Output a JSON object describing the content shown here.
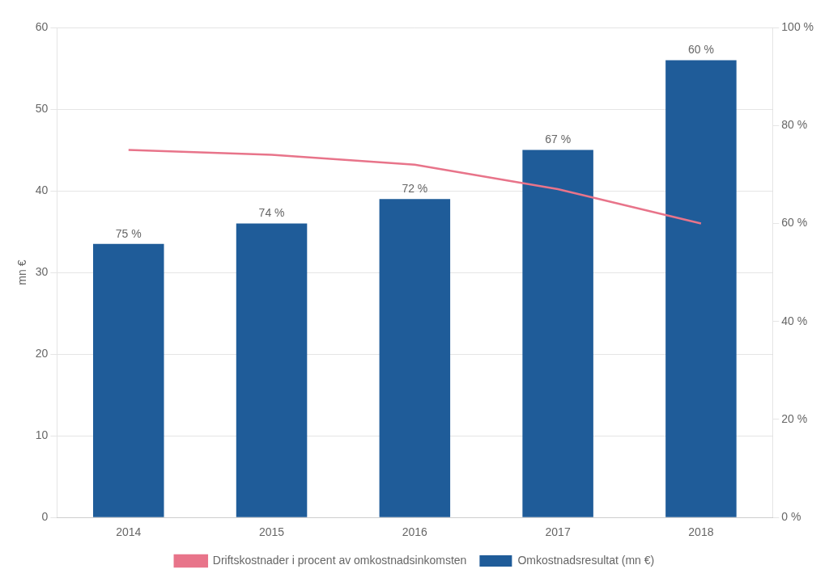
{
  "chart_data": {
    "type": "bar",
    "categories": [
      "2014",
      "2015",
      "2016",
      "2017",
      "2018"
    ],
    "ylabel": "mn €",
    "ylim": [
      0,
      60
    ],
    "yticks": [
      0,
      10,
      20,
      30,
      40,
      50,
      60
    ],
    "y2lim": [
      0,
      100
    ],
    "y2ticks": [
      {
        "value": 0,
        "label": "0 %"
      },
      {
        "value": 20,
        "label": "20 %"
      },
      {
        "value": 40,
        "label": "40 %"
      },
      {
        "value": 60,
        "label": "60 %"
      },
      {
        "value": 80,
        "label": "80 %"
      },
      {
        "value": 100,
        "label": "100 %"
      }
    ],
    "grid": true,
    "legend": "bottom",
    "series": [
      {
        "name": "Omkostnadsresultat (mn €)",
        "type": "bar",
        "color": "#1F5C99",
        "values": [
          33.5,
          36.0,
          39.0,
          45.0,
          56.0
        ]
      },
      {
        "name": "Driftskostnader i procent av omkostnadsinkomsten",
        "type": "line",
        "color": "#E8748A",
        "axis": "y2",
        "values": [
          75,
          74,
          72,
          67,
          60
        ],
        "data_labels": true,
        "value_labels": [
          "75 %",
          "74 %",
          "72 %",
          "67 %",
          "60 %"
        ]
      }
    ]
  }
}
